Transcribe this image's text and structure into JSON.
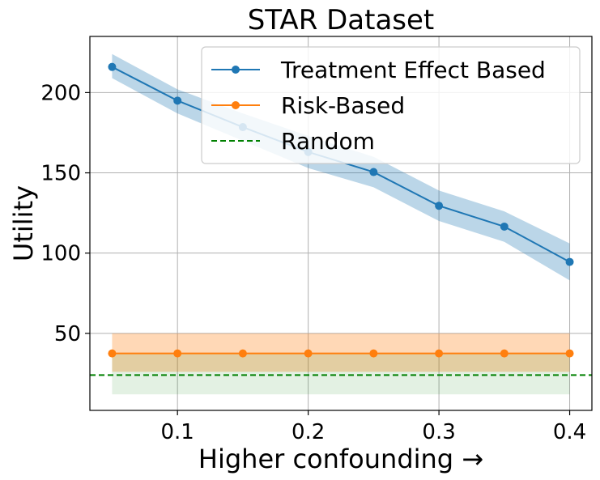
{
  "chart_data": {
    "type": "line",
    "title": "STAR Dataset",
    "xlabel": "Higher confounding →",
    "ylabel": "Utility",
    "xlim": [
      0.033,
      0.417
    ],
    "ylim": [
      2,
      235
    ],
    "xticks": [
      0.1,
      0.2,
      0.3,
      0.4
    ],
    "xtick_labels": [
      "0.1",
      "0.2",
      "0.3",
      "0.4"
    ],
    "yticks": [
      50,
      100,
      150,
      200
    ],
    "ytick_labels": [
      "50",
      "100",
      "150",
      "200"
    ],
    "grid": true,
    "legend_position": "top-right",
    "x": [
      0.05,
      0.1,
      0.15,
      0.2,
      0.25,
      0.3,
      0.35,
      0.4
    ],
    "series": [
      {
        "name": "Treatment Effect Based",
        "color": "#1f77b4",
        "style": "solid-marker",
        "values": [
          216,
          195,
          178.5,
          163,
          150.5,
          129.5,
          116.5,
          94.5
        ],
        "lower": [
          209,
          187,
          170,
          153,
          141,
          120,
          107,
          83
        ],
        "upper": [
          224,
          202,
          187,
          173,
          160,
          139,
          126,
          106
        ]
      },
      {
        "name": "Risk-Based",
        "color": "#ff7f0e",
        "style": "solid-marker",
        "values": [
          37.5,
          37.5,
          37.5,
          37.5,
          37.5,
          37.5,
          37.5,
          37.5
        ],
        "lower": [
          26,
          26,
          26,
          26,
          26,
          26,
          26,
          26
        ],
        "upper": [
          50,
          50,
          50,
          50,
          50,
          50,
          50,
          50
        ]
      },
      {
        "name": "Random",
        "color": "#008000",
        "style": "dashed",
        "constant": 24,
        "band_x": [
          0.05,
          0.4
        ],
        "lower": 12,
        "upper": 37
      }
    ]
  }
}
